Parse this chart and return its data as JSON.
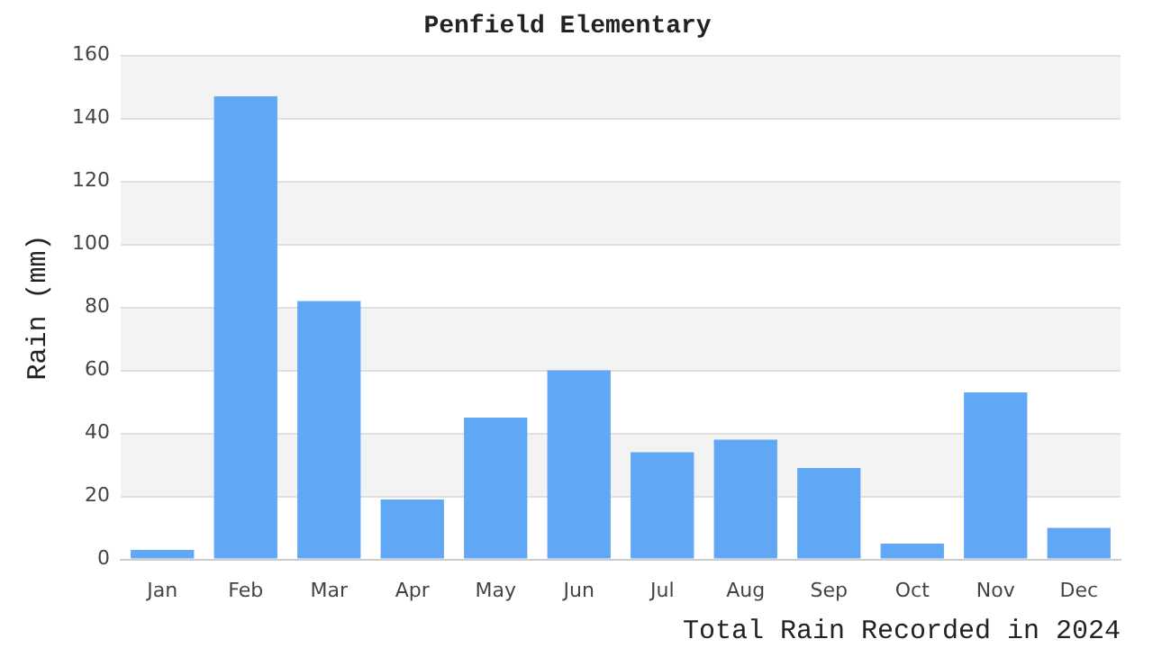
{
  "chart_data": {
    "type": "bar",
    "title": "Penfield Elementary",
    "ylabel": "Rain (mm)",
    "categories": [
      "Jan",
      "Feb",
      "Mar",
      "Apr",
      "May",
      "Jun",
      "Jul",
      "Aug",
      "Sep",
      "Oct",
      "Nov",
      "Dec"
    ],
    "values": [
      3,
      147,
      82,
      19,
      45,
      60,
      34,
      38,
      29,
      5,
      53,
      10
    ],
    "color": "#60a8f5",
    "ylim": [
      0,
      160
    ],
    "yticks": [
      0,
      20,
      40,
      60,
      80,
      100,
      120,
      140,
      160
    ],
    "grid": true,
    "annotations": [
      "Total Rain Recorded in 2024"
    ]
  }
}
